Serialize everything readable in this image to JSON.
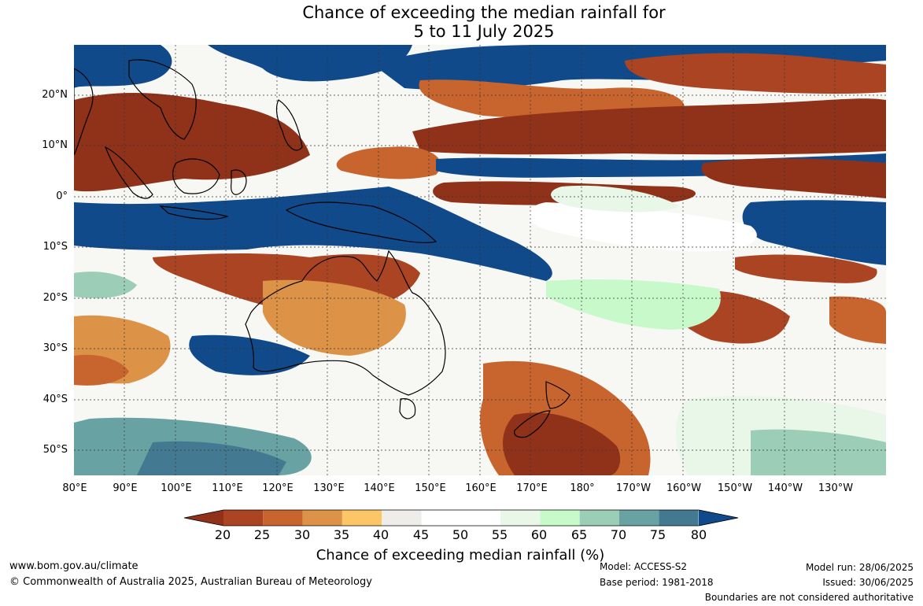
{
  "title": {
    "line1": "Chance of exceeding the median rainfall for",
    "line2": "5 to 11 July 2025"
  },
  "map": {
    "lat_labels": [
      "20°N",
      "10°N",
      "0°",
      "10°S",
      "20°S",
      "30°S",
      "40°S",
      "50°S"
    ],
    "lon_labels": [
      "80°E",
      "90°E",
      "100°E",
      "110°E",
      "120°E",
      "130°E",
      "140°E",
      "150°E",
      "160°E",
      "170°E",
      "180°",
      "170°W",
      "160°W",
      "150°W",
      "140°W",
      "130°W"
    ]
  },
  "legend": {
    "title": "Chance of exceeding median rainfall (%)",
    "ticks": [
      "20",
      "25",
      "30",
      "35",
      "40",
      "45",
      "50",
      "55",
      "60",
      "65",
      "70",
      "75",
      "80"
    ],
    "colors": [
      "#8f3219",
      "#ab4423",
      "#c8652f",
      "#dc9347",
      "#fcc566",
      "#eeede9",
      "#ffffff",
      "#ffffff",
      "#e8f7e8",
      "#c7f9cb",
      "#9ccdb6",
      "#69a2a2",
      "#447a91",
      "#104a8a"
    ]
  },
  "footer": {
    "url": "www.bom.gov.au/climate",
    "copyright": "© Commonwealth of Australia 2025, Australian Bureau of Meteorology",
    "model": "Model: ACCESS-S2",
    "base_period": "Base period: 1981-2018",
    "model_run": "Model run: 28/06/2025",
    "issued": "Issued: 30/06/2025",
    "disclaimer": "Boundaries are not considered authoritative"
  }
}
